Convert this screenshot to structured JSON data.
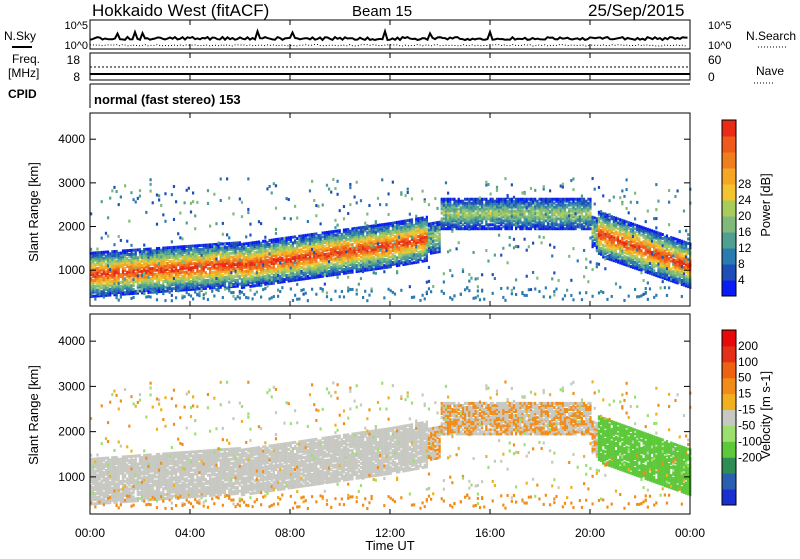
{
  "header": {
    "station": "Hokkaido West (fitACF)",
    "beam": "Beam 15",
    "date": "25/Sep/2015"
  },
  "top_panels": {
    "nsky_label": "N.Sky",
    "nsearch_label": "N.Search",
    "nsky_ticks": [
      "10^5",
      "10^0"
    ],
    "nsearch_ticks": [
      "10^5",
      "10^0"
    ],
    "freq_label_1": "Freq.",
    "freq_label_2": "[MHz]",
    "freq_ticks": [
      "18",
      "8"
    ],
    "nave_label": "Nave",
    "nave_ticks": [
      "60",
      "0"
    ],
    "cpid_label": "CPID",
    "cpid_value": "normal (fast stereo) 153"
  },
  "chart_data": [
    {
      "type": "heatmap",
      "name": "power",
      "ylabel": "Slant Range [km]",
      "ylim": [
        180,
        4600
      ],
      "yticks": [
        "1000",
        "2000",
        "3000",
        "4000"
      ],
      "xlim_hours": [
        0,
        24
      ],
      "colorbar": {
        "label": "Power [dB]",
        "ticks": [
          "4",
          "8",
          "12",
          "16",
          "20",
          "24",
          "28"
        ],
        "colors": [
          "#0a1cf5",
          "#1e4fb9",
          "#2a7bb0",
          "#4fa090",
          "#7fba7a",
          "#a8cc5c",
          "#f4c430",
          "#f5a623",
          "#f07e1e",
          "#ee5a1a",
          "#e82a16"
        ]
      }
    },
    {
      "type": "heatmap",
      "name": "velocity",
      "ylabel": "Slant Range [km]",
      "ylim": [
        180,
        4600
      ],
      "yticks": [
        "1000",
        "2000",
        "3000",
        "4000"
      ],
      "xlim_hours": [
        0,
        24
      ],
      "colorbar": {
        "label": "Velocity [m s-1]",
        "ticks": [
          "200",
          "100",
          "50",
          "15",
          "-15",
          "-50",
          "-100",
          "-200"
        ],
        "colors": [
          "#1a2fd0",
          "#2a5fb0",
          "#2f8c55",
          "#5cc83a",
          "#9be06e",
          "#c8c8c2",
          "#f1b020",
          "#f28c18",
          "#ee6212",
          "#e43016",
          "#e80a0a"
        ]
      }
    }
  ],
  "xaxis": {
    "ticks": [
      "00:00",
      "04:00",
      "08:00",
      "12:00",
      "16:00",
      "20:00",
      "00:00"
    ],
    "label": "Time UT"
  }
}
